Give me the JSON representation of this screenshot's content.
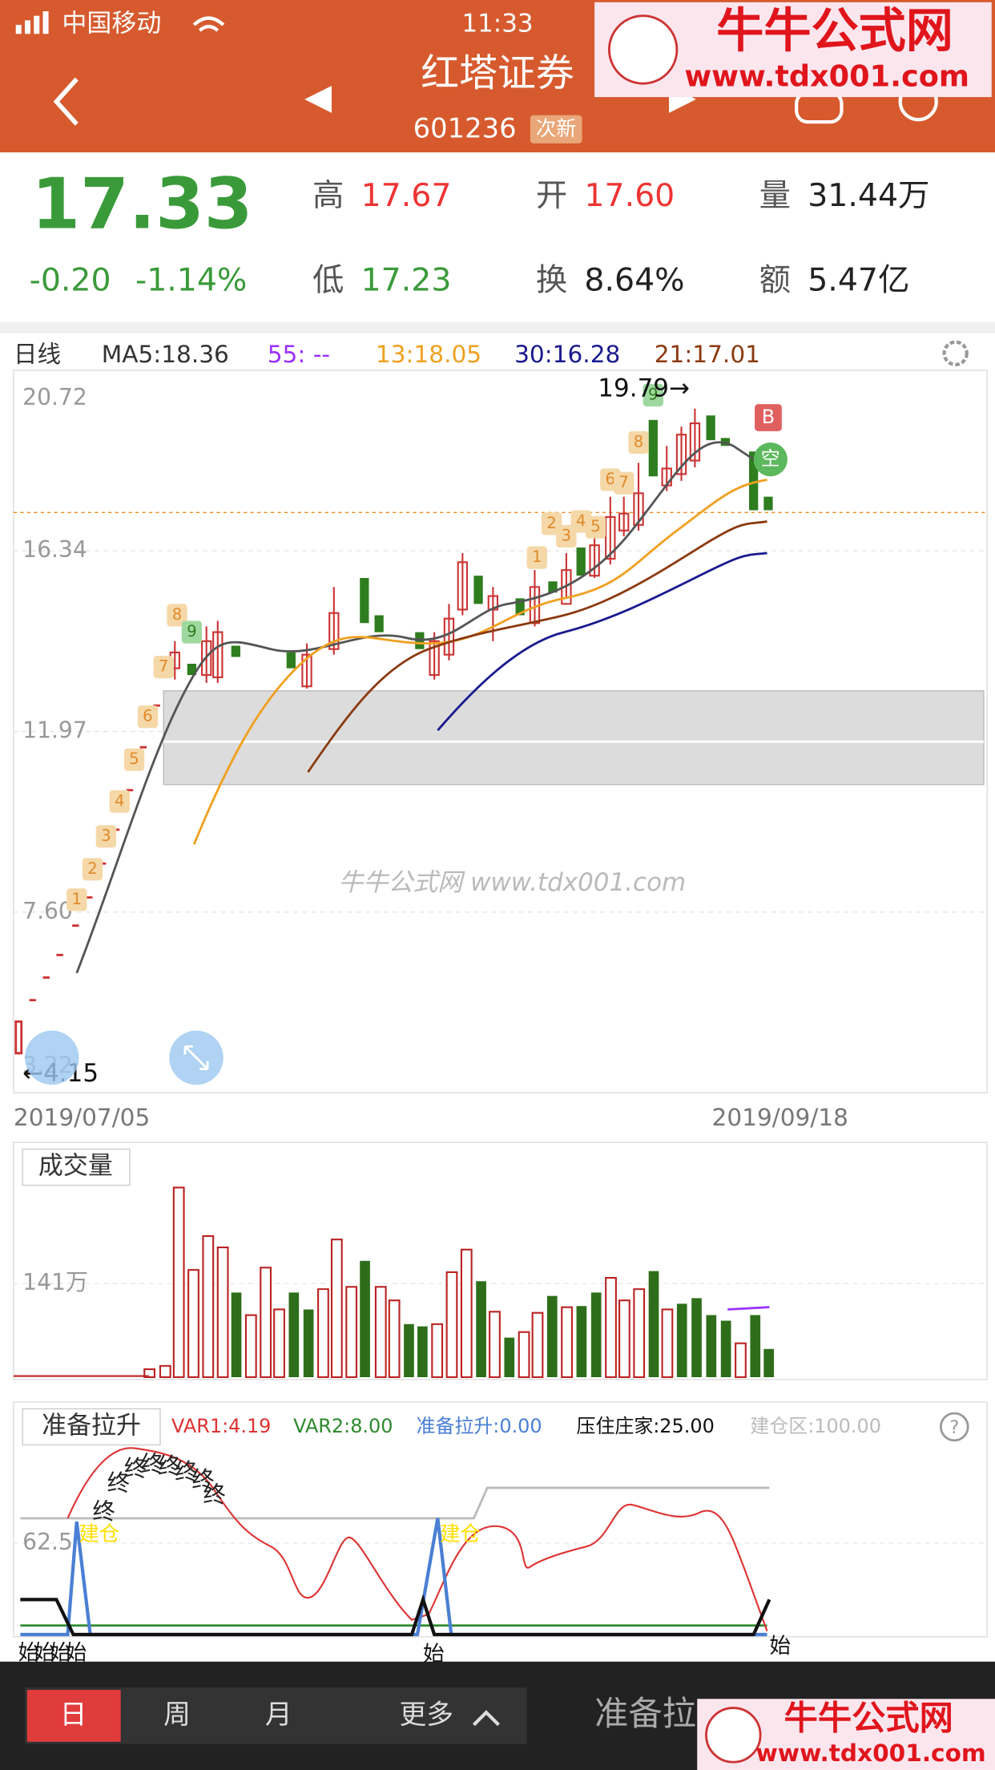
{
  "status_bar": {
    "carrier": "中国移动",
    "time": "11:33"
  },
  "header": {
    "title": "红塔证券",
    "code": "601236",
    "tag": "次新"
  },
  "watermark": {
    "name": "牛牛公式网",
    "url": "www.tdx001.com"
  },
  "quote": {
    "price": "17.33",
    "change": "-0.20",
    "change_pct": "-1.14%",
    "fields": [
      {
        "label": "高",
        "value": "17.67"
      },
      {
        "label": "开",
        "value": "17.60"
      },
      {
        "label": "量",
        "value": "31.44万"
      },
      {
        "label": "低",
        "value": "17.23"
      },
      {
        "label": "换",
        "value": "8.64%"
      },
      {
        "label": "额",
        "value": "5.47亿"
      }
    ]
  },
  "kline": {
    "period": "日线",
    "ma": [
      "MA5:18.36",
      "55: --",
      "13:18.05",
      "30:16.28",
      "21:17.01"
    ],
    "y_labels": [
      "20.72",
      "16.34",
      "11.97",
      "7.60",
      "3.22"
    ],
    "high_label": "19.79→",
    "low_label": "←4.15",
    "dates": [
      "2019/07/05",
      "2019/09/18"
    ],
    "markers_a": [
      "1",
      "2",
      "3",
      "4",
      "5",
      "6",
      "7",
      "8",
      "9"
    ],
    "markers_b": [
      "1",
      "2",
      "3",
      "4",
      "5",
      "6",
      "7",
      "8",
      "9"
    ],
    "signals": [
      "B",
      "空"
    ],
    "watermark_text": "牛牛公式网 www.tdx001.com"
  },
  "volume": {
    "title": "成交量",
    "y_label": "141万"
  },
  "indicator": {
    "title": "准备拉升",
    "legends": [
      "VAR1:4.19",
      "VAR2:8.00",
      "准备拉升:0.00",
      "压住庄家:25.00",
      "建仓区:100.00"
    ],
    "y_label": "62.5",
    "end_mark": "终",
    "build_mark": "建仓",
    "start_mark": "始"
  },
  "tabs": [
    "日",
    "周",
    "月",
    "更多"
  ],
  "bottom_label": "准备拉"
}
